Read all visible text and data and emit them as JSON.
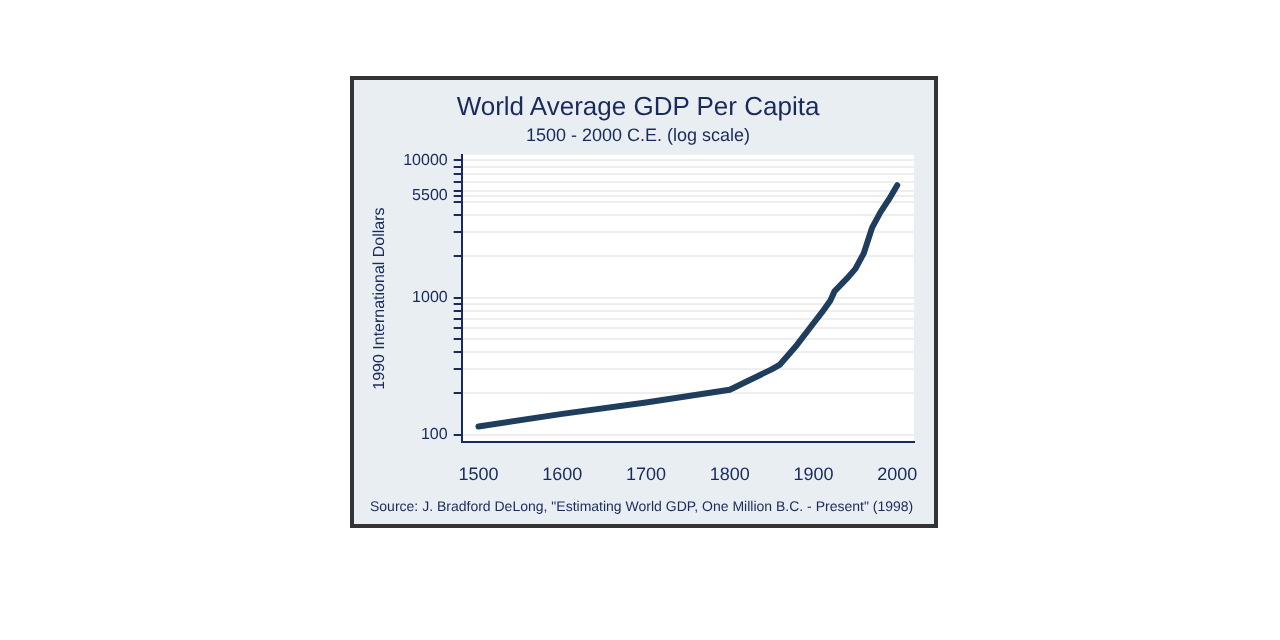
{
  "chart_data": {
    "type": "line",
    "title": "World Average GDP Per Capita",
    "subtitle": "1500 - 2000 C.E. (log scale)",
    "ylabel": "1990 International Dollars",
    "annotations": [
      "Source: J. Bradford DeLong, \"Estimating World GDP, One Million B.C. - Present\" (1998)"
    ],
    "log": "y",
    "grid": "y",
    "legend": false,
    "marker": "none",
    "line_style": "solid",
    "xlim": [
      1480,
      2020
    ],
    "xticks": [
      1500,
      1600,
      1700,
      1800,
      1900,
      2000
    ],
    "ylim": [
      88,
      11000
    ],
    "yticks": [
      100,
      {
        "value": 200,
        "label": null
      },
      {
        "value": 300,
        "label": null
      },
      {
        "value": 400,
        "label": null
      },
      {
        "value": 500,
        "label": null
      },
      {
        "value": 600,
        "label": null
      },
      {
        "value": 700,
        "label": null
      },
      {
        "value": 800,
        "label": null
      },
      {
        "value": 900,
        "label": null
      },
      1000,
      {
        "value": 2000,
        "label": null
      },
      {
        "value": 3000,
        "label": null
      },
      {
        "value": 4000,
        "label": null
      },
      {
        "value": 5000,
        "label": null
      },
      5500,
      {
        "value": 6000,
        "label": null
      },
      {
        "value": 7000,
        "label": null
      },
      {
        "value": 8000,
        "label": null
      },
      {
        "value": 9000,
        "label": null
      },
      10000
    ],
    "series": [
      {
        "color": "#1f3d5c",
        "x": [
          1500,
          1600,
          1700,
          1800,
          1850,
          1860,
          1880,
          1900,
          1910,
          1920,
          1925,
          1940,
          1950,
          1960,
          1970,
          1980,
          1990,
          2000
        ],
        "values": [
          115,
          142,
          172,
          213,
          300,
          325,
          450,
          650,
          780,
          950,
          1110,
          1380,
          1620,
          2100,
          3240,
          4200,
          5200,
          6600
        ]
      }
    ]
  }
}
